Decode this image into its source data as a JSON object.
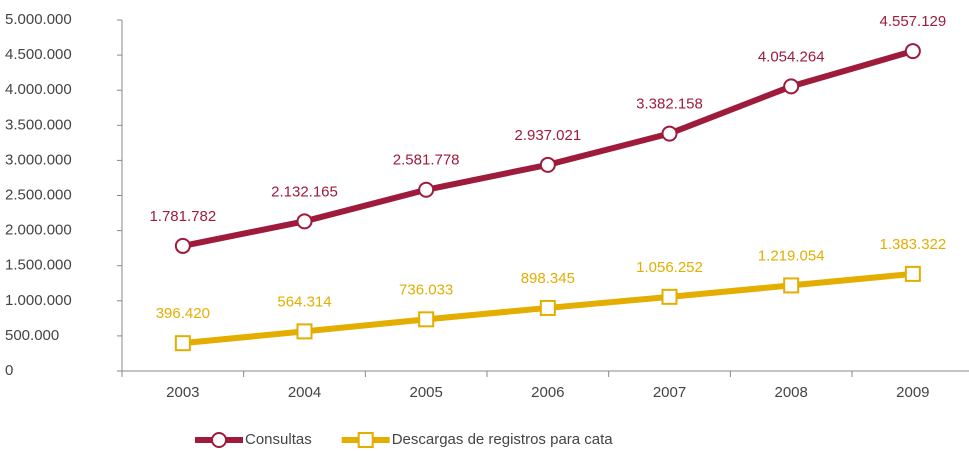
{
  "chart_data": {
    "type": "line",
    "categories": [
      "2003",
      "2004",
      "2005",
      "2006",
      "2007",
      "2008",
      "2009"
    ],
    "series": [
      {
        "name": "Consultas",
        "color": "#9e1b3c",
        "values": [
          1781782,
          2132165,
          2581778,
          2937021,
          3382158,
          4054264,
          4557129
        ],
        "value_labels": [
          "1.781.782",
          "2.132.165",
          "2.581.778",
          "2.937.021",
          "3.382.158",
          "4.054.264",
          "4.557.129"
        ],
        "marker": "circle"
      },
      {
        "name": "Descargas de registros para cata",
        "color": "#e3ae00",
        "values": [
          396420,
          564314,
          736033,
          898345,
          1056252,
          1219054,
          1383322
        ],
        "value_labels": [
          "396.420",
          "564.314",
          "736.033",
          "898.345",
          "1.056.252",
          "1.219.054",
          "1.383.322"
        ],
        "marker": "square"
      }
    ],
    "ylim": [
      0,
      5000000
    ],
    "yticks": [
      0,
      {
        "value": 500000,
        "label": "500.000"
      },
      {
        "value": 1000000,
        "label": "1.000.000"
      },
      {
        "value": 1500000,
        "label": "1.500.000"
      },
      {
        "value": 2000000,
        "label": "2.000.000"
      },
      {
        "value": 2500000,
        "label": "2.500.000"
      },
      {
        "value": 3000000,
        "label": "3.000.000"
      },
      {
        "value": 3500000,
        "label": "3.500.000"
      },
      {
        "value": 4000000,
        "label": "4.000.000"
      },
      {
        "value": 4500000,
        "label": "4.500.000"
      },
      {
        "value": 5000000,
        "label": "5.000.000"
      }
    ],
    "legend": "bottom",
    "grid": false
  }
}
